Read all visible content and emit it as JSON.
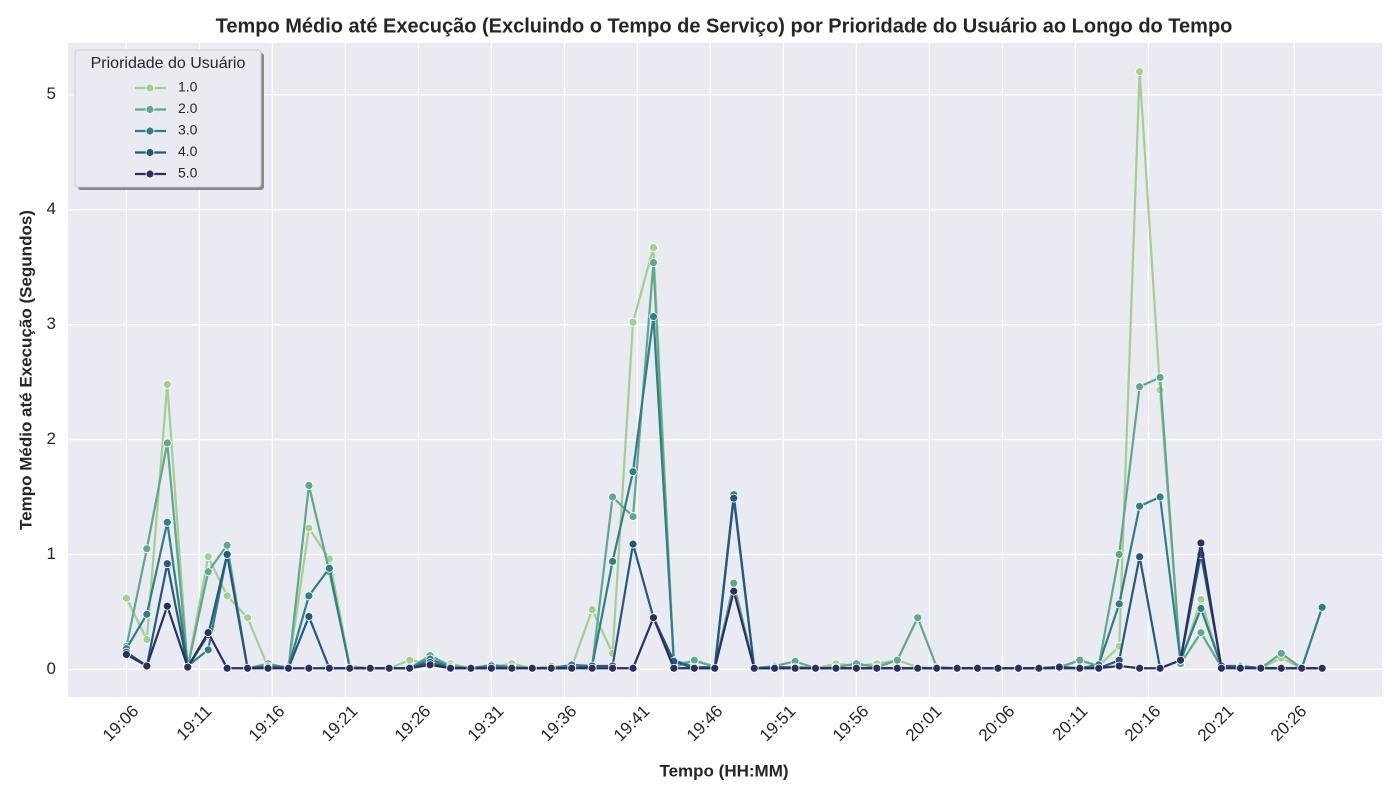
{
  "chart_data": {
    "type": "line",
    "title": "Tempo Médio até Execução (Excluindo o Tempo de Serviço) por Prioridade do Usuário ao Longo do Tempo",
    "xlabel": "Tempo (HH:MM)",
    "ylabel": "Tempo Médio até Execução (Segundos)",
    "legend_title": "Prioridade do Usuário",
    "legend": "upper left",
    "grid": true,
    "x": [
      1146,
      1147.4,
      1148.8,
      1150.2,
      1151.6,
      1152.9,
      1154.3,
      1155.7,
      1157.1,
      1158.5,
      1159.9,
      1161.3,
      1162.7,
      1164.0,
      1165.4,
      1166.8,
      1168.2,
      1169.6,
      1171.0,
      1172.4,
      1173.8,
      1175.1,
      1176.5,
      1177.9,
      1179.3,
      1180.7,
      1182.1,
      1183.5,
      1184.9,
      1186.3,
      1187.6,
      1189.0,
      1190.4,
      1191.8,
      1193.2,
      1194.6,
      1196.0,
      1197.4,
      1198.8,
      1200.2,
      1201.5,
      1202.9,
      1204.3,
      1205.7,
      1207.1,
      1208.5,
      1209.9,
      1211.3,
      1212.6,
      1214.0,
      1215.4,
      1216.8,
      1218.2,
      1219.6,
      1221.0,
      1222.3,
      1223.7,
      1225.1,
      1226.5,
      1227.9
    ],
    "xlim": [
      1142,
      1232
    ],
    "xticks": [
      {
        "value": 1146,
        "label": "19:06"
      },
      {
        "value": 1151,
        "label": "19:11"
      },
      {
        "value": 1156,
        "label": "19:16"
      },
      {
        "value": 1161,
        "label": "19:21"
      },
      {
        "value": 1166,
        "label": "19:26"
      },
      {
        "value": 1171,
        "label": "19:31"
      },
      {
        "value": 1176,
        "label": "19:36"
      },
      {
        "value": 1181,
        "label": "19:41"
      },
      {
        "value": 1186,
        "label": "19:46"
      },
      {
        "value": 1191,
        "label": "19:51"
      },
      {
        "value": 1196,
        "label": "19:56"
      },
      {
        "value": 1201,
        "label": "20:01"
      },
      {
        "value": 1206,
        "label": "20:06"
      },
      {
        "value": 1211,
        "label": "20:11"
      },
      {
        "value": 1216,
        "label": "20:16"
      },
      {
        "value": 1221,
        "label": "20:21"
      },
      {
        "value": 1226,
        "label": "20:26"
      }
    ],
    "ylim": [
      -0.24,
      5.45
    ],
    "yticks": [
      0,
      1,
      2,
      3,
      4,
      5
    ],
    "series": [
      {
        "name": "1.0",
        "color": "#a1d08f",
        "values": [
          0.62,
          0.26,
          2.48,
          0.02,
          0.98,
          0.64,
          0.45,
          0.02,
          0.01,
          1.23,
          0.96,
          0.03,
          0.01,
          0.01,
          0.08,
          0.05,
          0.05,
          0.01,
          0.02,
          0.05,
          0.01,
          0.03,
          0.02,
          0.52,
          0.14,
          3.02,
          3.67,
          0.05,
          0.07,
          0.03,
          1.5,
          0.01,
          0.01,
          0.02,
          0.01,
          0.05,
          0.03,
          0.05,
          0.08,
          0.02,
          0.01,
          0.01,
          0.01,
          0.01,
          0.01,
          0.01,
          0.01,
          0.08,
          0.03,
          0.2,
          5.2,
          2.43,
          0.05,
          0.61,
          0.02,
          0.02,
          0.01,
          0.1,
          0.01,
          0.01
        ]
      },
      {
        "name": "2.0",
        "color": "#5ea88b",
        "values": [
          0.2,
          1.05,
          1.97,
          0.02,
          0.85,
          1.08,
          0.01,
          0.05,
          0.01,
          1.6,
          0.85,
          0.02,
          0.01,
          0.01,
          0.01,
          0.12,
          0.03,
          0.01,
          0.04,
          0.02,
          0.01,
          0.01,
          0.01,
          0.03,
          1.5,
          1.33,
          3.54,
          0.02,
          0.08,
          0.02,
          0.75,
          0.01,
          0.03,
          0.07,
          0.01,
          0.02,
          0.05,
          0.02,
          0.08,
          0.45,
          0.02,
          0.01,
          0.01,
          0.01,
          0.01,
          0.01,
          0.02,
          0.08,
          0.03,
          1.0,
          2.46,
          2.54,
          0.05,
          0.32,
          0.02,
          0.03,
          0.01,
          0.14,
          0.01,
          0.01
        ]
      },
      {
        "name": "3.0",
        "color": "#2e8084",
        "values": [
          0.18,
          0.48,
          1.28,
          0.03,
          0.17,
          1.0,
          0.01,
          0.03,
          0.02,
          0.64,
          0.88,
          0.01,
          0.01,
          0.01,
          0.01,
          0.09,
          0.02,
          0.01,
          0.03,
          0.02,
          0.01,
          0.01,
          0.04,
          0.03,
          0.94,
          1.72,
          3.07,
          0.08,
          0.02,
          0.02,
          1.52,
          0.01,
          0.02,
          0.02,
          0.01,
          0.01,
          0.01,
          0.01,
          0.01,
          0.01,
          0.01,
          0.01,
          0.01,
          0.01,
          0.01,
          0.01,
          0.01,
          0.01,
          0.04,
          0.57,
          1.42,
          1.5,
          0.08,
          0.53,
          0.03,
          0.03,
          0.01,
          0.01,
          0.01,
          0.54
        ]
      },
      {
        "name": "4.0",
        "color": "#22597e",
        "values": [
          0.15,
          0.03,
          0.92,
          0.02,
          0.3,
          1.0,
          0.01,
          0.02,
          0.01,
          0.46,
          0.01,
          0.01,
          0.01,
          0.01,
          0.01,
          0.06,
          0.01,
          0.01,
          0.01,
          0.01,
          0.01,
          0.01,
          0.01,
          0.03,
          0.03,
          1.09,
          0.45,
          0.07,
          0.01,
          0.01,
          1.49,
          0.01,
          0.01,
          0.01,
          0.01,
          0.01,
          0.01,
          0.01,
          0.01,
          0.01,
          0.01,
          0.01,
          0.01,
          0.01,
          0.01,
          0.01,
          0.01,
          0.01,
          0.01,
          0.08,
          0.98,
          0.01,
          0.08,
          1.0,
          0.03,
          0.02,
          0.01,
          0.01,
          0.01,
          0.01
        ]
      },
      {
        "name": "5.0",
        "color": "#2a2f61",
        "values": [
          0.13,
          0.03,
          0.55,
          0.02,
          0.32,
          0.01,
          0.01,
          0.01,
          0.01,
          0.01,
          0.01,
          0.01,
          0.01,
          0.01,
          0.01,
          0.04,
          0.01,
          0.01,
          0.01,
          0.01,
          0.01,
          0.01,
          0.01,
          0.01,
          0.01,
          0.01,
          0.45,
          0.01,
          0.01,
          0.01,
          0.68,
          0.01,
          0.01,
          0.01,
          0.01,
          0.01,
          0.01,
          0.01,
          0.01,
          0.01,
          0.01,
          0.01,
          0.01,
          0.01,
          0.01,
          0.01,
          0.02,
          0.01,
          0.01,
          0.03,
          0.01,
          0.01,
          0.08,
          1.1,
          0.01,
          0.01,
          0.01,
          0.01,
          0.01,
          0.01
        ]
      }
    ]
  }
}
